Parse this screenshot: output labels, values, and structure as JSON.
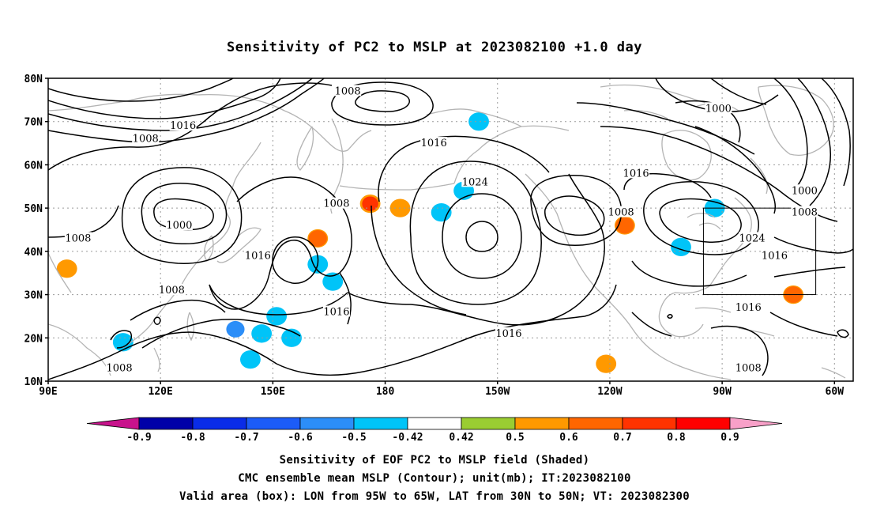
{
  "title": "Sensitivity of PC2 to MSLP at 2023082100 +1.0 day",
  "map": {
    "lon_range": [
      90,
      305
    ],
    "lat_range": [
      10,
      80
    ],
    "lat_ticks": [
      {
        "value": 80,
        "label": "80N"
      },
      {
        "value": 70,
        "label": "70N"
      },
      {
        "value": 60,
        "label": "60N"
      },
      {
        "value": 50,
        "label": "50N"
      },
      {
        "value": 40,
        "label": "40N"
      },
      {
        "value": 30,
        "label": "30N"
      },
      {
        "value": 20,
        "label": "20N"
      },
      {
        "value": 10,
        "label": "10N"
      }
    ],
    "lon_ticks": [
      {
        "value": 90,
        "label": "90E"
      },
      {
        "value": 120,
        "label": "120E"
      },
      {
        "value": 150,
        "label": "150E"
      },
      {
        "value": 180,
        "label": "180"
      },
      {
        "value": 210,
        "label": "150W"
      },
      {
        "value": 240,
        "label": "120W"
      },
      {
        "value": 270,
        "label": "90W"
      },
      {
        "value": 300,
        "label": "60W"
      }
    ],
    "valid_box": {
      "lon": [
        265,
        295
      ],
      "lat": [
        30,
        50
      ]
    },
    "contour_labels": [
      {
        "text": "1008",
        "lon": 170,
        "lat": 77
      },
      {
        "text": "1016",
        "lon": 126,
        "lat": 69
      },
      {
        "text": "1008",
        "lon": 116,
        "lat": 66
      },
      {
        "text": "1016",
        "lon": 193,
        "lat": 65
      },
      {
        "text": "1000",
        "lon": 269,
        "lat": 73
      },
      {
        "text": "1016",
        "lon": 247,
        "lat": 58
      },
      {
        "text": "1024",
        "lon": 204,
        "lat": 56
      },
      {
        "text": "1008",
        "lon": 167,
        "lat": 51
      },
      {
        "text": "1008",
        "lon": 243,
        "lat": 49
      },
      {
        "text": "1000",
        "lon": 292,
        "lat": 54
      },
      {
        "text": "1008",
        "lon": 292,
        "lat": 49
      },
      {
        "text": "1000",
        "lon": 125,
        "lat": 46
      },
      {
        "text": "1008",
        "lon": 98,
        "lat": 43
      },
      {
        "text": "1024",
        "lon": 278,
        "lat": 43
      },
      {
        "text": "1016",
        "lon": 146,
        "lat": 39
      },
      {
        "text": "1016",
        "lon": 284,
        "lat": 39
      },
      {
        "text": "1008",
        "lon": 123,
        "lat": 31
      },
      {
        "text": "1016",
        "lon": 167,
        "lat": 26
      },
      {
        "text": "1016",
        "lon": 213,
        "lat": 21
      },
      {
        "text": "1016",
        "lon": 277,
        "lat": 27
      },
      {
        "text": "1008",
        "lon": 109,
        "lat": 13
      },
      {
        "text": "1008",
        "lon": 277,
        "lat": 13
      }
    ],
    "shaded_patches": [
      {
        "lon": 176,
        "lat": 51,
        "level": 0.5
      },
      {
        "lon": 184,
        "lat": 50,
        "level": 0.5
      },
      {
        "lon": 176,
        "lat": 51,
        "level": 0.7
      },
      {
        "lon": 162,
        "lat": 43,
        "level": 0.5
      },
      {
        "lon": 162,
        "lat": 43,
        "level": 0.6
      },
      {
        "lon": 147,
        "lat": 21,
        "level": -0.5
      },
      {
        "lon": 140,
        "lat": 22,
        "level": -0.6
      },
      {
        "lon": 151,
        "lat": 25,
        "level": -0.5
      },
      {
        "lon": 155,
        "lat": 20,
        "level": -0.5
      },
      {
        "lon": 144,
        "lat": 15,
        "level": -0.5
      },
      {
        "lon": 162,
        "lat": 37,
        "level": -0.5
      },
      {
        "lon": 166,
        "lat": 33,
        "level": -0.5
      },
      {
        "lon": 110,
        "lat": 19,
        "level": -0.5
      },
      {
        "lon": 195,
        "lat": 49,
        "level": -0.5
      },
      {
        "lon": 201,
        "lat": 54,
        "level": -0.5
      },
      {
        "lon": 205,
        "lat": 70,
        "level": -0.5
      },
      {
        "lon": 289,
        "lat": 30,
        "level": 0.5
      },
      {
        "lon": 289,
        "lat": 30,
        "level": 0.6
      },
      {
        "lon": 244,
        "lat": 46,
        "level": 0.5
      },
      {
        "lon": 244,
        "lat": 46,
        "level": 0.6
      },
      {
        "lon": 239,
        "lat": 14,
        "level": 0.5
      },
      {
        "lon": 95,
        "lat": 36,
        "level": 0.5
      },
      {
        "lon": 259,
        "lat": 41,
        "level": -0.5
      },
      {
        "lon": 268,
        "lat": 50,
        "level": -0.5
      }
    ]
  },
  "colorbar": {
    "below_color": "#c8138c",
    "above_color": "#f8a0c8",
    "segments": [
      {
        "color": "#0000a8"
      },
      {
        "color": "#0a2ce8"
      },
      {
        "color": "#1c5cf8"
      },
      {
        "color": "#2c8ef8"
      },
      {
        "color": "#00c4f8"
      },
      {
        "color": "#ffffff"
      },
      {
        "color": "#9acd32"
      },
      {
        "color": "#ff9900"
      },
      {
        "color": "#ff6600"
      },
      {
        "color": "#ff3300"
      },
      {
        "color": "#ff0000"
      }
    ],
    "tick_labels": [
      "-0.9",
      "-0.8",
      "-0.7",
      "-0.6",
      "-0.5",
      "-0.42",
      "0.42",
      "0.5",
      "0.6",
      "0.7",
      "0.8",
      "0.9"
    ]
  },
  "captions": [
    "Sensitivity of EOF PC2 to MSLP field (Shaded)",
    "CMC ensemble mean MSLP (Contour); unit(mb); IT:2023082100",
    "Valid area (box): LON from 95W to 65W, LAT from 30N to 50N; VT: 2023082300"
  ]
}
